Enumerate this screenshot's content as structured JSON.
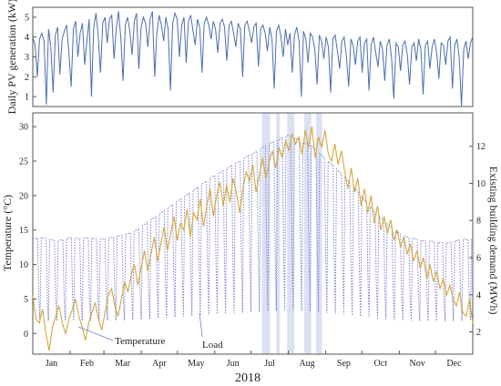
{
  "chart_data": [
    {
      "type": "line",
      "ylabel": "Daily PV generation (kW)",
      "ylim": [
        0.5,
        5.5
      ],
      "yticks": [
        1,
        2,
        3,
        4,
        5
      ],
      "series": [
        {
          "color": "#4a6fb0",
          "values": [
            4.0,
            3.6,
            2.0,
            3.9,
            4.2,
            3.8,
            0.6,
            4.4,
            3.5,
            1.2,
            4.1,
            4.5,
            2.1,
            3.9,
            4.3,
            4.6,
            3.2,
            1.5,
            4.4,
            4.8,
            3.0,
            4.2,
            4.7,
            2.6,
            3.8,
            4.9,
            1.0,
            4.5,
            5.2,
            4.1,
            2.2,
            4.7,
            5.0,
            3.7,
            4.9,
            5.1,
            2.9,
            4.4,
            5.3,
            4.0,
            1.8,
            4.6,
            5.0,
            4.3,
            3.1,
            4.8,
            5.2,
            2.4,
            4.5,
            5.0,
            4.7,
            3.5,
            4.9,
            5.3,
            2.0,
            4.2,
            5.1,
            4.6,
            3.8,
            5.0,
            4.4,
            1.3,
            4.7,
            5.2,
            4.9,
            3.0,
            4.6,
            5.0,
            2.7,
            4.8,
            5.1,
            4.3,
            3.6,
            4.9,
            4.5,
            2.2,
            4.7,
            5.0,
            4.6,
            3.9,
            4.8,
            4.4,
            3.2,
            4.7,
            4.9,
            4.5,
            2.8,
            4.6,
            4.8,
            4.2,
            3.5,
            4.7,
            4.4,
            2.0,
            4.6,
            4.8,
            4.3,
            3.7,
            4.5,
            4.7,
            2.5,
            4.4,
            4.6,
            4.2,
            3.3,
            4.5,
            3.9,
            1.4,
            4.3,
            4.6,
            4.0,
            3.0,
            4.4,
            3.6,
            4.2,
            2.2,
            4.1,
            4.5,
            3.8,
            1.0,
            4.3,
            3.9,
            2.7,
            4.2,
            4.0,
            3.4,
            1.6,
            4.1,
            3.8,
            2.9,
            4.0,
            3.5,
            1.2,
            3.9,
            4.1,
            3.3,
            2.4,
            3.8,
            4.0,
            3.0,
            1.5,
            3.9,
            3.6,
            2.6,
            3.8,
            4.0,
            2.2,
            3.7,
            3.9,
            1.3,
            3.6,
            4.0,
            3.2,
            2.5,
            3.8,
            3.4,
            1.8,
            3.6,
            3.9,
            3.0,
            0.9,
            3.7,
            3.5,
            2.3,
            3.6,
            3.8,
            3.1,
            1.6,
            3.5,
            3.7,
            2.8,
            3.9,
            3.4,
            1.1,
            3.6,
            3.8,
            2.4,
            3.5,
            3.9,
            3.2,
            1.9,
            3.7,
            3.6,
            2.6,
            3.8,
            4.0,
            1.4,
            3.6,
            3.9,
            3.0,
            0.5,
            3.4,
            3.8,
            2.9,
            3.7,
            4.0
          ]
        }
      ]
    },
    {
      "type": "line",
      "xlabel": "2018",
      "ylabel": "Temperature (°C)",
      "y2label": "Existing building demand (MWh)",
      "ylim": [
        -3,
        32
      ],
      "y2lim": [
        0.8,
        13.8
      ],
      "yticks": [
        0,
        5,
        10,
        15,
        20,
        25,
        30
      ],
      "y2ticks": [
        2,
        4,
        6,
        8,
        10,
        12
      ],
      "months": [
        "Jan",
        "Feb",
        "Mar",
        "Apr",
        "May",
        "Jun",
        "Jul",
        "Aug",
        "Sep",
        "Oct",
        "Nov",
        "Dec"
      ],
      "shaded_days": [
        [
          190,
          197
        ],
        [
          202,
          205
        ],
        [
          211,
          217
        ],
        [
          225,
          231
        ],
        [
          235,
          240
        ]
      ],
      "series": [
        {
          "name": "Temperature",
          "axis": "left",
          "color": "#d4a73c",
          "values": [
            5.5,
            2.0,
            1.5,
            3.5,
            0.0,
            -2.5,
            1.0,
            2.5,
            4.0,
            1.5,
            0.0,
            2.0,
            3.5,
            5.0,
            2.5,
            1.0,
            -1.0,
            1.5,
            3.0,
            4.5,
            2.0,
            0.5,
            3.0,
            5.5,
            6.5,
            4.0,
            2.5,
            5.0,
            7.5,
            6.0,
            8.5,
            10.0,
            7.0,
            9.5,
            12.0,
            9.0,
            11.5,
            14.0,
            10.5,
            13.0,
            15.5,
            12.0,
            14.5,
            17.0,
            13.5,
            16.0,
            15.0,
            18.0,
            14.0,
            17.5,
            16.5,
            19.5,
            15.5,
            18.5,
            21.0,
            17.0,
            20.0,
            22.0,
            18.5,
            21.5,
            19.0,
            22.5,
            20.5,
            17.5,
            21.0,
            23.5,
            22.0,
            24.5,
            20.5,
            23.0,
            25.5,
            22.5,
            25.0,
            26.5,
            24.0,
            27.0,
            25.5,
            28.0,
            26.5,
            29.0,
            27.5,
            28.5,
            26.0,
            29.5,
            27.0,
            30.0,
            25.5,
            28.5,
            27.0,
            29.5,
            26.0,
            25.0,
            27.5,
            24.5,
            26.5,
            23.5,
            21.0,
            24.0,
            20.5,
            22.5,
            18.5,
            21.0,
            17.5,
            20.0,
            16.0,
            18.5,
            15.0,
            17.0,
            14.5,
            16.5,
            13.5,
            15.0,
            12.5,
            14.0,
            11.5,
            13.0,
            10.5,
            12.0,
            9.5,
            11.0,
            8.0,
            10.0,
            7.5,
            9.0,
            6.5,
            8.0,
            5.5,
            7.0,
            5.0,
            4.0,
            6.0,
            3.0,
            2.5,
            5.0,
            1.5
          ]
        },
        {
          "name": "Load",
          "axis": "right",
          "color": "#7c7fd0",
          "values": [
            7.0,
            7.1,
            7.0,
            6.9,
            7.0,
            7.1,
            7.0,
            7.1,
            7.0,
            7.0,
            7.1,
            7.2,
            7.3,
            7.5,
            7.8,
            8.1,
            8.4,
            8.7,
            9.0,
            9.3,
            9.6,
            9.9,
            10.2,
            10.5,
            10.7,
            11.0,
            11.2,
            11.5,
            11.7,
            12.0,
            12.2,
            12.4,
            12.6,
            12.4,
            12.2,
            12.0,
            11.6,
            11.2,
            10.8,
            10.4,
            9.9,
            9.4,
            8.9,
            8.4,
            8.0,
            7.6,
            7.3,
            7.1,
            7.0,
            6.9,
            6.9,
            6.8,
            6.8,
            6.9,
            7.0,
            7.0
          ]
        }
      ],
      "annotations": [
        "Temperature",
        "Load"
      ]
    }
  ]
}
